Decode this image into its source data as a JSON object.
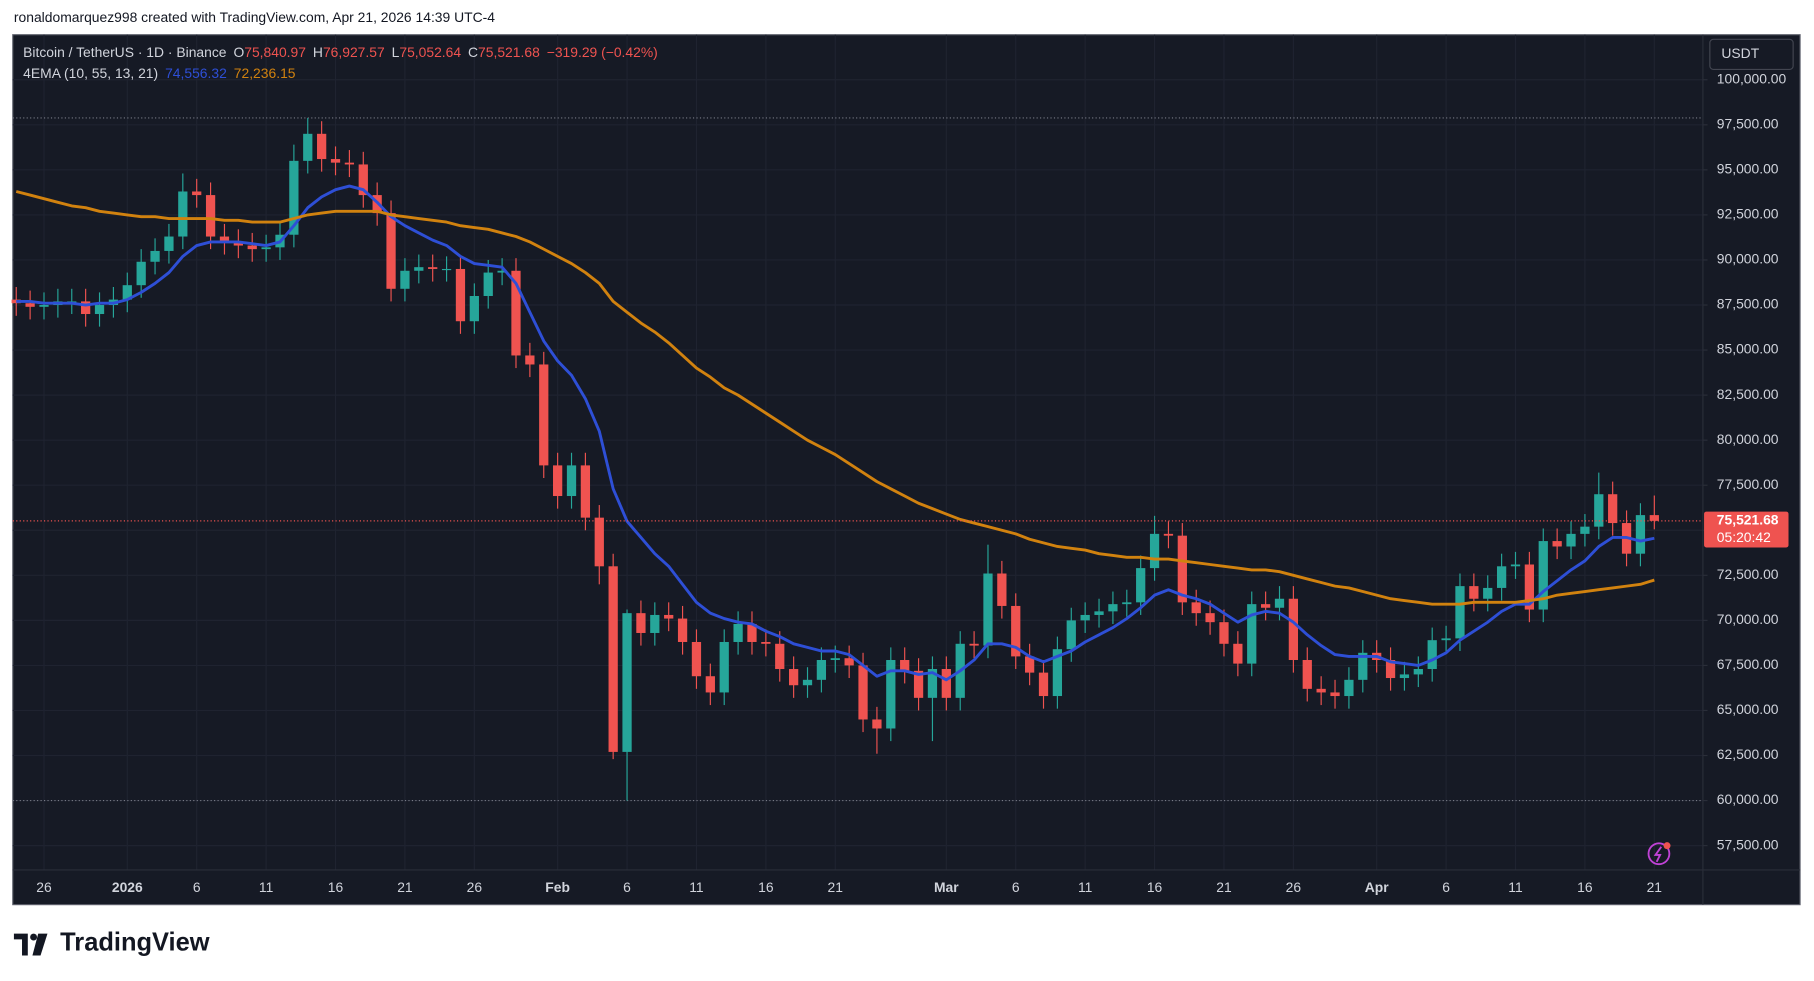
{
  "header": {
    "attribution": "ronaldomarquez998 created with TradingView.com, Apr 21, 2026 14:39 UTC-4"
  },
  "chart_data": {
    "type": "candlestick",
    "symbol": "Bitcoin / TetherUS · 1D · Binance",
    "ohlc_legend": [
      {
        "key": "O",
        "text": "75,840.97"
      },
      {
        "key": "H",
        "text": "76,927.57"
      },
      {
        "key": "L",
        "text": "75,052.64"
      },
      {
        "key": "C",
        "text": "75,521.68"
      }
    ],
    "change": "−319.29 (−0.42%)",
    "indicator": "4EMA (10, 55, 13, 21)",
    "currency": "USDT",
    "categories": [
      null,
      null,
      "26",
      null,
      null,
      null,
      null,
      null,
      "2026",
      null,
      null,
      null,
      null,
      "6",
      null,
      null,
      null,
      null,
      "11",
      null,
      null,
      null,
      null,
      "16",
      null,
      null,
      null,
      null,
      "21",
      null,
      null,
      null,
      null,
      "26",
      null,
      null,
      null,
      null,
      null,
      "Feb",
      null,
      null,
      null,
      null,
      "6",
      null,
      null,
      null,
      null,
      "11",
      null,
      null,
      null,
      null,
      "16",
      null,
      null,
      null,
      null,
      "21",
      null,
      null,
      null,
      null,
      null,
      null,
      null,
      "Mar",
      null,
      null,
      null,
      null,
      "6",
      null,
      null,
      null,
      null,
      "11",
      null,
      null,
      null,
      null,
      "16",
      null,
      null,
      null,
      null,
      "21",
      null,
      null,
      null,
      null,
      "26",
      null,
      null,
      null,
      null,
      null,
      "Apr",
      null,
      null,
      null,
      null,
      "6",
      null,
      null,
      null,
      null,
      "11",
      null,
      null,
      null,
      null,
      "16",
      null,
      null,
      null,
      null,
      "21"
    ],
    "open": [
      87800,
      87600,
      87400,
      87500,
      87700,
      87700,
      87000,
      87500,
      87800,
      88600,
      89900,
      90500,
      91300,
      93800,
      93600,
      91300,
      91000,
      90800,
      90600,
      90700,
      91400,
      95500,
      97000,
      95600,
      95400,
      95300,
      93600,
      92600,
      88400,
      89400,
      89600,
      89500,
      89500,
      86600,
      88000,
      89300,
      89400,
      84700,
      84200,
      78600,
      76900,
      78600,
      75700,
      73000,
      62700,
      70400,
      69300,
      70300,
      70100,
      68800,
      66900,
      66000,
      68800,
      69800,
      68800,
      68700,
      67300,
      66400,
      66700,
      67800,
      67900,
      67500,
      64500,
      64000,
      67800,
      67200,
      65700,
      67300,
      65700,
      68700,
      68600,
      72600,
      70800,
      68000,
      67100,
      65800,
      68400,
      70000,
      70300,
      70500,
      70900,
      71000,
      72900,
      74800,
      74700,
      71000,
      70400,
      69900,
      68700,
      67600,
      70900,
      70700,
      71200,
      67800,
      66200,
      66000,
      65800,
      66700,
      68200,
      67800,
      66800,
      67000,
      67300,
      68900,
      69000,
      71900,
      71200,
      71800,
      73000,
      73100,
      70600,
      74400,
      74100,
      74800,
      75200,
      77000,
      75400,
      73700,
      75840.97
    ],
    "high": [
      88500,
      88300,
      88200,
      88400,
      88400,
      88400,
      88200,
      88500,
      89300,
      90600,
      91200,
      92000,
      94800,
      94500,
      94300,
      92000,
      91700,
      91500,
      91400,
      92100,
      96400,
      97880,
      97700,
      96300,
      96100,
      96000,
      94300,
      93300,
      90100,
      90300,
      90300,
      90200,
      90200,
      88700,
      90000,
      90100,
      90100,
      85400,
      84900,
      79300,
      79300,
      79300,
      76400,
      73700,
      70600,
      71100,
      71000,
      71000,
      70800,
      69500,
      67600,
      69500,
      70500,
      70500,
      69500,
      69400,
      68000,
      67400,
      68500,
      68600,
      68600,
      68200,
      65200,
      68500,
      68500,
      67900,
      68000,
      68000,
      69400,
      69400,
      74200,
      73300,
      71500,
      68700,
      67800,
      69100,
      70700,
      71000,
      71200,
      71600,
      71700,
      73600,
      75800,
      75500,
      75400,
      71700,
      71100,
      70600,
      69400,
      71600,
      71600,
      71900,
      71900,
      68500,
      66900,
      66700,
      67400,
      68900,
      68900,
      68500,
      67700,
      68000,
      69600,
      69700,
      72600,
      72600,
      72500,
      73700,
      73800,
      73800,
      75100,
      75100,
      75500,
      75900,
      78200,
      77700,
      76100,
      76500,
      76927.57
    ],
    "low": [
      86900,
      86700,
      86700,
      86800,
      87000,
      86300,
      86300,
      86800,
      87100,
      87900,
      89200,
      89800,
      90600,
      92900,
      90600,
      90300,
      90100,
      89900,
      89900,
      90000,
      90700,
      94800,
      94900,
      94700,
      94600,
      92900,
      91900,
      87700,
      87700,
      88700,
      88800,
      88800,
      85900,
      85900,
      87300,
      88600,
      84000,
      83500,
      77900,
      76200,
      76200,
      75000,
      72000,
      62300,
      60000,
      68600,
      68600,
      69400,
      68100,
      66200,
      65300,
      65300,
      68100,
      68100,
      68000,
      66600,
      65700,
      65700,
      66000,
      67100,
      66800,
      63800,
      62600,
      63300,
      66500,
      65000,
      63300,
      65000,
      65000,
      67900,
      67900,
      70100,
      67300,
      66400,
      65100,
      65100,
      67700,
      69300,
      69600,
      69800,
      70200,
      70300,
      72200,
      74000,
      70300,
      69700,
      69200,
      68000,
      66900,
      66900,
      70000,
      70000,
      67100,
      65500,
      65300,
      65100,
      65100,
      66000,
      67100,
      66100,
      66100,
      66300,
      66600,
      68200,
      68300,
      70500,
      70500,
      71100,
      72300,
      69900,
      69900,
      73400,
      73400,
      74100,
      74500,
      74700,
      73000,
      73000,
      75052.64
    ],
    "close": [
      87600,
      87400,
      87500,
      87700,
      87700,
      87000,
      87500,
      87800,
      88600,
      89900,
      90500,
      91300,
      93800,
      93600,
      91300,
      91000,
      90800,
      90600,
      90700,
      91400,
      95500,
      97000,
      95600,
      95400,
      95300,
      93600,
      92600,
      88400,
      89400,
      89600,
      89500,
      89500,
      86600,
      88000,
      89300,
      89400,
      84700,
      84200,
      78600,
      76900,
      78600,
      75700,
      73000,
      62700,
      70400,
      69300,
      70300,
      70100,
      68800,
      66900,
      66000,
      68800,
      69800,
      68800,
      68700,
      67300,
      66400,
      66700,
      67800,
      67900,
      67500,
      64500,
      64000,
      67800,
      67200,
      65700,
      67300,
      65700,
      68700,
      68600,
      72600,
      70800,
      68000,
      67100,
      65800,
      68400,
      70000,
      70300,
      70500,
      70900,
      71000,
      72900,
      74800,
      74700,
      71000,
      70400,
      69900,
      68700,
      67600,
      70900,
      70700,
      71200,
      67800,
      66200,
      66000,
      65800,
      66700,
      68200,
      67800,
      66800,
      67000,
      67300,
      68900,
      69000,
      71900,
      71200,
      71800,
      73000,
      73100,
      70600,
      74400,
      74100,
      74800,
      75200,
      77000,
      75400,
      73700,
      75840.97,
      75521.68
    ],
    "up_color": "#26a69a",
    "down_color": "#ef5350",
    "series": [
      {
        "color": "#2e4fd6",
        "value_label": "74,556.32",
        "values": [
          87700,
          87700,
          87600,
          87600,
          87600,
          87500,
          87600,
          87600,
          87800,
          88200,
          88700,
          89300,
          90200,
          90800,
          91000,
          91000,
          91000,
          90900,
          90800,
          91000,
          91900,
          92900,
          93500,
          93900,
          94100,
          93900,
          93200,
          92400,
          91900,
          91500,
          91100,
          90800,
          90200,
          89800,
          89700,
          89600,
          88700,
          87100,
          85500,
          84400,
          83600,
          82300,
          80500,
          77300,
          75500,
          74600,
          73700,
          73000,
          72000,
          71000,
          70400,
          70100,
          69900,
          69800,
          69400,
          69100,
          68700,
          68500,
          68300,
          68300,
          68100,
          67500,
          66900,
          67200,
          67200,
          67000,
          67100,
          66700,
          67200,
          67800,
          68700,
          68700,
          68500,
          68000,
          67700,
          68000,
          68300,
          68800,
          69200,
          69600,
          70100,
          70700,
          71400,
          71700,
          71400,
          71200,
          70900,
          70400,
          69900,
          70300,
          70500,
          70400,
          69900,
          69200,
          68600,
          68100,
          68000,
          68000,
          68000,
          67700,
          67600,
          67500,
          67800,
          68200,
          68900,
          69400,
          69900,
          70500,
          70900,
          70900,
          71600,
          72200,
          72800,
          73300,
          74100,
          74600,
          74600,
          74400,
          74556.32
        ]
      },
      {
        "color": "#d1820f",
        "value_label": "72,236.15",
        "values": [
          93800,
          93600,
          93400,
          93200,
          93000,
          92900,
          92700,
          92600,
          92500,
          92400,
          92400,
          92300,
          92300,
          92300,
          92300,
          92200,
          92200,
          92100,
          92100,
          92100,
          92300,
          92500,
          92600,
          92700,
          92700,
          92700,
          92700,
          92500,
          92400,
          92300,
          92200,
          92100,
          91900,
          91800,
          91700,
          91500,
          91300,
          91000,
          90600,
          90200,
          89800,
          89300,
          88700,
          87700,
          87100,
          86500,
          86000,
          85400,
          84700,
          84000,
          83500,
          82900,
          82500,
          82000,
          81500,
          81000,
          80500,
          80000,
          79600,
          79200,
          78700,
          78200,
          77700,
          77300,
          76900,
          76500,
          76200,
          75900,
          75600,
          75400,
          75200,
          75000,
          74800,
          74500,
          74300,
          74100,
          74000,
          73900,
          73700,
          73600,
          73500,
          73500,
          73400,
          73400,
          73300,
          73200,
          73100,
          73000,
          72900,
          72800,
          72800,
          72700,
          72500,
          72300,
          72100,
          71900,
          71800,
          71600,
          71400,
          71200,
          71100,
          71000,
          70900,
          70900,
          70900,
          71000,
          71000,
          71000,
          71000,
          71100,
          71200,
          71400,
          71500,
          71600,
          71700,
          71800,
          71900,
          72000,
          72236.15
        ]
      }
    ],
    "last_price_label": "75,521.68",
    "countdown": "05:20:42",
    "ylim": [
      56150,
      102500
    ],
    "yticks": [
      {
        "value": 57500,
        "label": "57,500.00"
      },
      {
        "value": 60000,
        "label": "60,000.00"
      },
      {
        "value": 62500,
        "label": "62,500.00"
      },
      {
        "value": 65000,
        "label": "65,000.00"
      },
      {
        "value": 67500,
        "label": "67,500.00"
      },
      {
        "value": 70000,
        "label": "70,000.00"
      },
      {
        "value": 72500,
        "label": "72,500.00"
      },
      {
        "value": 75000,
        "label": "75,000.00"
      },
      {
        "value": 77500,
        "label": "77,500.00"
      },
      {
        "value": 80000,
        "label": "80,000.00"
      },
      {
        "value": 82500,
        "label": "82,500.00"
      },
      {
        "value": 85000,
        "label": "85,000.00"
      },
      {
        "value": 87500,
        "label": "87,500.00"
      },
      {
        "value": 90000,
        "label": "90,000.00"
      },
      {
        "value": 92500,
        "label": "92,500.00"
      },
      {
        "value": 95000,
        "label": "95,000.00"
      },
      {
        "value": 97500,
        "label": "97,500.00"
      },
      {
        "value": 100000,
        "label": "100,000.00"
      }
    ],
    "grid": true
  },
  "footer": {
    "logo": "TradingView"
  }
}
